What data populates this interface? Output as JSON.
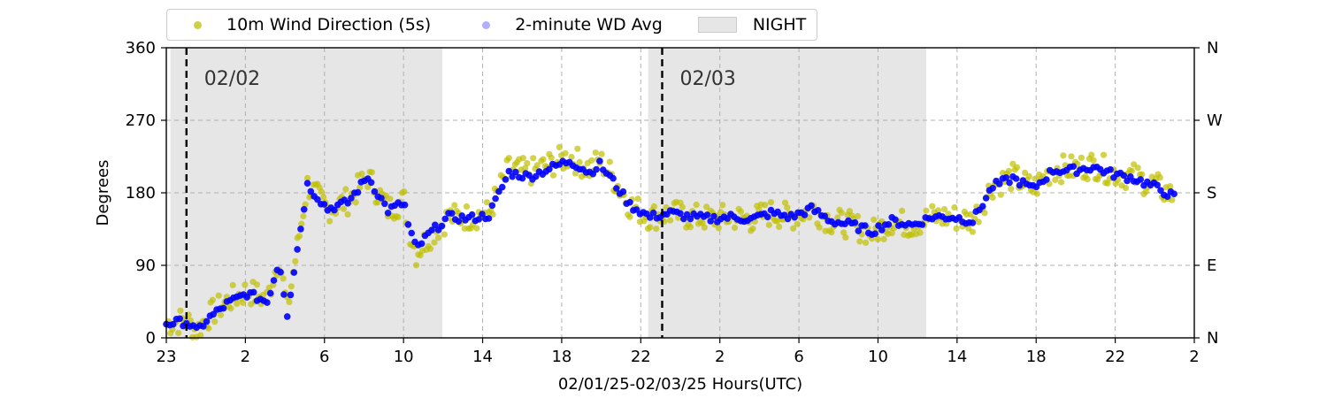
{
  "chart_data": {
    "type": "scatter",
    "title": "",
    "xlabel": "02/01/25-02/03/25  Hours(UTC)",
    "ylabel": "Degrees",
    "xlim_hours": [
      0,
      51
    ],
    "ylim": [
      0,
      360
    ],
    "x_tick_labels": [
      "23",
      "2",
      "6",
      "10",
      "14",
      "18",
      "22",
      "2",
      "6",
      "10",
      "14",
      "18",
      "22",
      "2"
    ],
    "y_tick_labels": [
      "0",
      "90",
      "180",
      "270",
      "360"
    ],
    "right_axis_labels": [
      "N",
      "E",
      "S",
      "W",
      "N"
    ],
    "grid": true,
    "legend_placement": "top-left outside",
    "date_markers": [
      {
        "label": "02/02",
        "hour": 1
      },
      {
        "label": "02/03",
        "hour": 24.6
      }
    ],
    "night_spans": [
      {
        "label": "NIGHT",
        "start_hour": 0.2,
        "end_hour": 13.7
      },
      {
        "label": "NIGHT",
        "start_hour": 23.9,
        "end_hour": 37.7
      }
    ],
    "series": [
      {
        "name": "10m Wind Direction (5s)",
        "color": "#bfbf00",
        "marker": "circle",
        "x_hours": [
          0,
          1,
          1.5,
          2,
          3,
          4,
          5,
          5.3,
          5.6,
          6,
          7,
          8,
          9,
          10,
          11,
          11.8,
          12,
          12.4,
          13,
          14,
          15,
          16,
          17,
          18,
          19,
          20,
          21,
          21.5,
          22,
          23,
          24,
          25,
          26,
          27,
          28,
          29,
          30,
          31,
          32,
          33,
          34,
          35,
          36,
          37,
          38,
          39,
          40,
          41,
          42,
          43,
          44,
          45,
          46,
          47,
          48,
          49,
          50
        ],
        "y_degrees": [
          18,
          22,
          8,
          25,
          45,
          58,
          48,
          75,
          100,
          35,
          190,
          160,
          170,
          200,
          160,
          170,
          140,
          105,
          125,
          150,
          150,
          155,
          210,
          205,
          215,
          225,
          210,
          220,
          205,
          165,
          150,
          155,
          150,
          148,
          150,
          147,
          155,
          150,
          160,
          145,
          140,
          130,
          145,
          140,
          150,
          150,
          145,
          190,
          200,
          185,
          210,
          210,
          215,
          205,
          200,
          190,
          175
        ]
      },
      {
        "name": "2-minute WD Avg",
        "color": "#0000ff",
        "marker": "circle",
        "x_hours": [
          0,
          1,
          1.5,
          2,
          3,
          4,
          5,
          5.3,
          5.6,
          6,
          7,
          8,
          9,
          10,
          11,
          11.8,
          12,
          12.4,
          13,
          14,
          15,
          16,
          17,
          18,
          19,
          20,
          21,
          21.5,
          22,
          23,
          24,
          25,
          26,
          27,
          28,
          29,
          30,
          31,
          32,
          33,
          34,
          35,
          36,
          37,
          38,
          39,
          40,
          41,
          42,
          43,
          44,
          45,
          46,
          47,
          48,
          49,
          50
        ],
        "y_degrees": [
          18,
          20,
          8,
          22,
          42,
          55,
          45,
          70,
          95,
          30,
          190,
          160,
          168,
          200,
          158,
          168,
          140,
          110,
          128,
          150,
          148,
          152,
          205,
          200,
          210,
          220,
          205,
          215,
          200,
          165,
          150,
          155,
          150,
          148,
          150,
          147,
          155,
          150,
          160,
          145,
          140,
          132,
          145,
          140,
          150,
          150,
          145,
          188,
          198,
          185,
          208,
          208,
          212,
          203,
          198,
          188,
          175
        ]
      }
    ]
  },
  "legend": {
    "items": [
      {
        "label": "10m Wind Direction (5s)",
        "color": "#bfbf00",
        "kind": "dot"
      },
      {
        "label": "2-minute WD Avg",
        "color": "#8f8fff",
        "kind": "dot"
      },
      {
        "label": "NIGHT",
        "color": "#e6e6e6",
        "kind": "patch"
      }
    ]
  }
}
